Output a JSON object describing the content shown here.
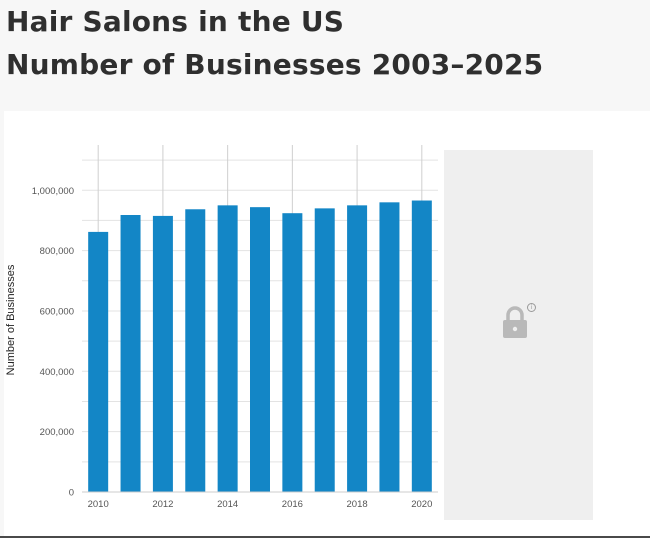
{
  "header": {
    "title_line1": "Hair Salons in the US",
    "title_line2": "Number of Businesses 2003–2025"
  },
  "colors": {
    "bar": "#1386c6",
    "grid": "#e3e3e3",
    "year_line": "#cfcfcf",
    "locked_panel": "#efefef",
    "lock": "#b9b9b9"
  },
  "icons": {
    "lock": "lock-icon",
    "info": "info-icon"
  },
  "chart_data": {
    "type": "bar",
    "categories": [
      "2010",
      "2011",
      "2012",
      "2013",
      "2014",
      "2015",
      "2016",
      "2017",
      "2018",
      "2019",
      "2020"
    ],
    "x_tick_labels": [
      "2010",
      "2012",
      "2014",
      "2016",
      "2018",
      "2020"
    ],
    "values": [
      862000,
      918000,
      915000,
      937000,
      950000,
      944000,
      924000,
      940000,
      950000,
      960000,
      966000
    ],
    "ylabel": "Number of Businesses",
    "xlabel": "",
    "y_ticks": [
      "0",
      "200,000",
      "400,000",
      "600,000",
      "800,000",
      "1,000,000"
    ],
    "y_tick_values": [
      0,
      200000,
      400000,
      600000,
      800000,
      1000000
    ],
    "ylim": [
      0,
      1150000
    ],
    "grid": true,
    "locked_region": "2021–2025"
  }
}
